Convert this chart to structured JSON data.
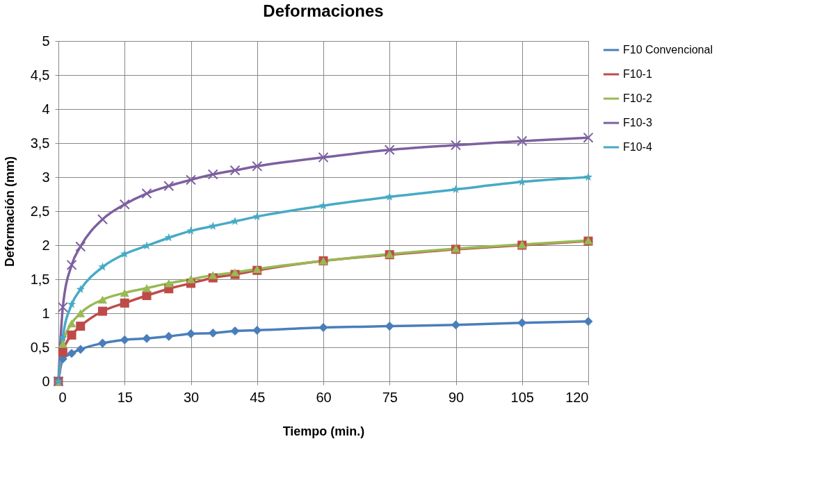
{
  "chart_data": {
    "type": "line",
    "title": "Deformaciones",
    "xlabel": "Tiempo (min.)",
    "ylabel": "Deformación (mm)",
    "x": [
      0,
      1,
      3,
      5,
      10,
      15,
      20,
      25,
      30,
      35,
      40,
      45,
      60,
      75,
      90,
      105,
      120
    ],
    "xlim": [
      0,
      120
    ],
    "xticks": [
      0,
      15,
      30,
      45,
      60,
      75,
      90,
      105,
      120
    ],
    "ylim": [
      0,
      5
    ],
    "yticks": [
      0,
      {
        "value": 0.5,
        "label": "0,5"
      },
      1,
      {
        "value": 1.5,
        "label": "1,5"
      },
      2,
      {
        "value": 2.5,
        "label": "2,5"
      },
      3,
      {
        "value": 3.5,
        "label": "3,5"
      },
      4,
      {
        "value": 4.5,
        "label": "4,5"
      },
      5
    ],
    "grid": true,
    "legend": "right",
    "line_style": "solid",
    "series": [
      {
        "name": "F10 Convencional",
        "color": "#4a7ebb",
        "marker": "diamond",
        "values": [
          0,
          0.33,
          0.41,
          0.47,
          0.56,
          0.61,
          0.63,
          0.66,
          0.7,
          0.71,
          0.74,
          0.75,
          0.79,
          0.81,
          0.83,
          0.86,
          0.88
        ]
      },
      {
        "name": "F10-1",
        "color": "#be4b48",
        "marker": "square",
        "values": [
          0,
          0.43,
          0.68,
          0.81,
          1.03,
          1.15,
          1.26,
          1.36,
          1.44,
          1.52,
          1.57,
          1.63,
          1.77,
          1.86,
          1.94,
          2.0,
          2.06
        ]
      },
      {
        "name": "F10-2",
        "color": "#98b954",
        "marker": "triangle",
        "values": [
          0,
          0.55,
          0.85,
          1.0,
          1.2,
          1.3,
          1.37,
          1.44,
          1.5,
          1.56,
          1.6,
          1.65,
          1.77,
          1.87,
          1.95,
          2.01,
          2.07
        ]
      },
      {
        "name": "F10-3",
        "color": "#7d60a0",
        "marker": "cross",
        "values": [
          0,
          1.09,
          1.71,
          1.98,
          2.38,
          2.6,
          2.76,
          2.87,
          2.96,
          3.04,
          3.1,
          3.16,
          3.29,
          3.4,
          3.47,
          3.53,
          3.58
        ]
      },
      {
        "name": "F10-4",
        "color": "#46aac5",
        "marker": "star",
        "values": [
          0,
          0.64,
          1.13,
          1.35,
          1.68,
          1.87,
          1.99,
          2.11,
          2.21,
          2.28,
          2.35,
          2.42,
          2.58,
          2.71,
          2.82,
          2.93,
          3.0
        ]
      }
    ]
  }
}
